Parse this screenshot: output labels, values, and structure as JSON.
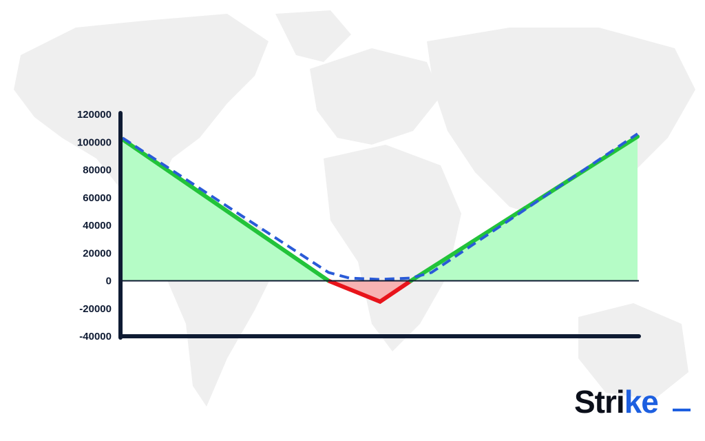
{
  "brand": {
    "name": "Strike",
    "prefix": "Stri",
    "accent_letter": "ke"
  },
  "colors": {
    "axis": "#0f1b33",
    "profit_fill": "#b5fcc6",
    "profit_line": "#22c33a",
    "loss_fill": "#f7b3b3",
    "loss_line": "#e8141b",
    "dashed_line": "#2a5bd7",
    "map": "#efefef",
    "brand_accent": "#1d5fe0"
  },
  "chart_data": {
    "type": "area",
    "title": "",
    "xlabel": "",
    "ylabel": "",
    "xlim": [
      0,
      100
    ],
    "ylim": [
      -40000,
      120000
    ],
    "yticks": [
      "120000",
      "100000",
      "80000",
      "60000",
      "40000",
      "20000",
      "0",
      "-20000",
      "-40000"
    ],
    "grid": false,
    "series": [
      {
        "style": "payoff-at-expiry",
        "x": [
          0,
          40,
          50,
          56,
          100
        ],
        "y": [
          102000,
          0,
          -15000,
          0,
          104000
        ]
      },
      {
        "style": "payoff-before-expiry-dashed",
        "x": [
          0,
          40,
          44,
          50,
          56,
          60,
          100
        ],
        "y": [
          103000,
          6000,
          2000,
          1000,
          2000,
          6000,
          106000
        ]
      }
    ]
  }
}
